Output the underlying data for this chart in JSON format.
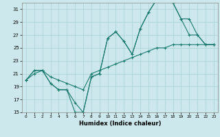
{
  "xlabel": "Humidex (Indice chaleur)",
  "bg_color": "#cce8ec",
  "grid_color": "#aad0d5",
  "line_color": "#1a7a6e",
  "line1_x": [
    0,
    1,
    2,
    3,
    4,
    5,
    6,
    7,
    8,
    9,
    10,
    11,
    12,
    13,
    14,
    15,
    16,
    17,
    18,
    19,
    20,
    21,
    22,
    23
  ],
  "line1_y": [
    20.0,
    21.5,
    21.5,
    19.5,
    18.5,
    18.5,
    16.5,
    15.0,
    20.5,
    21.0,
    26.5,
    27.5,
    26.0,
    24.0,
    28.0,
    30.5,
    32.5,
    32.5,
    32.0,
    29.5,
    27.0,
    27.0,
    25.5,
    25.5
  ],
  "line2_x": [
    0,
    1,
    2,
    3,
    4,
    5,
    6,
    7,
    8,
    9,
    10,
    11,
    12,
    13,
    14,
    15,
    16,
    17,
    18,
    19,
    20,
    21,
    22,
    23
  ],
  "line2_y": [
    20.0,
    21.5,
    21.5,
    19.5,
    18.5,
    18.5,
    15.0,
    15.0,
    20.5,
    21.0,
    26.5,
    27.5,
    26.0,
    24.0,
    28.0,
    30.5,
    32.5,
    32.5,
    32.0,
    29.5,
    29.5,
    27.0,
    25.5,
    25.5
  ],
  "line3_x": [
    0,
    1,
    2,
    3,
    4,
    5,
    6,
    7,
    8,
    9,
    10,
    11,
    12,
    13,
    14,
    15,
    16,
    17,
    18,
    19,
    20,
    21,
    22,
    23
  ],
  "line3_y": [
    20.0,
    21.0,
    21.5,
    20.5,
    20.0,
    19.5,
    19.0,
    18.5,
    21.0,
    21.5,
    22.0,
    22.5,
    23.0,
    23.5,
    24.0,
    24.5,
    25.0,
    25.0,
    25.5,
    25.5,
    25.5,
    25.5,
    25.5,
    25.5
  ],
  "xlim": [
    -0.5,
    23.5
  ],
  "ylim": [
    15,
    32
  ],
  "yticks": [
    15,
    17,
    19,
    21,
    23,
    25,
    27,
    29,
    31
  ],
  "xticks": [
    0,
    1,
    2,
    3,
    4,
    5,
    6,
    7,
    8,
    9,
    10,
    11,
    12,
    13,
    14,
    15,
    16,
    17,
    18,
    19,
    20,
    21,
    22,
    23
  ]
}
